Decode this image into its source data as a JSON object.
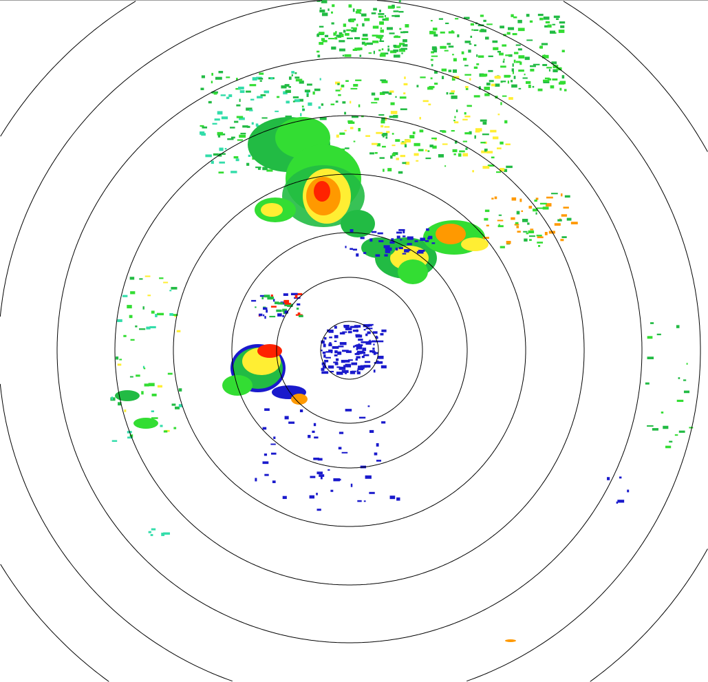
{
  "view": "radar-ppi",
  "range_rings": 8,
  "colors": {
    "ring": "#000000",
    "weak": "#1a1acc",
    "light": "#22bb44",
    "moderate_light": "#33dd33",
    "moderate": "#ffee33",
    "heavy": "#ff9900",
    "intense": "#ff2200",
    "cyan": "#33ddaa"
  }
}
